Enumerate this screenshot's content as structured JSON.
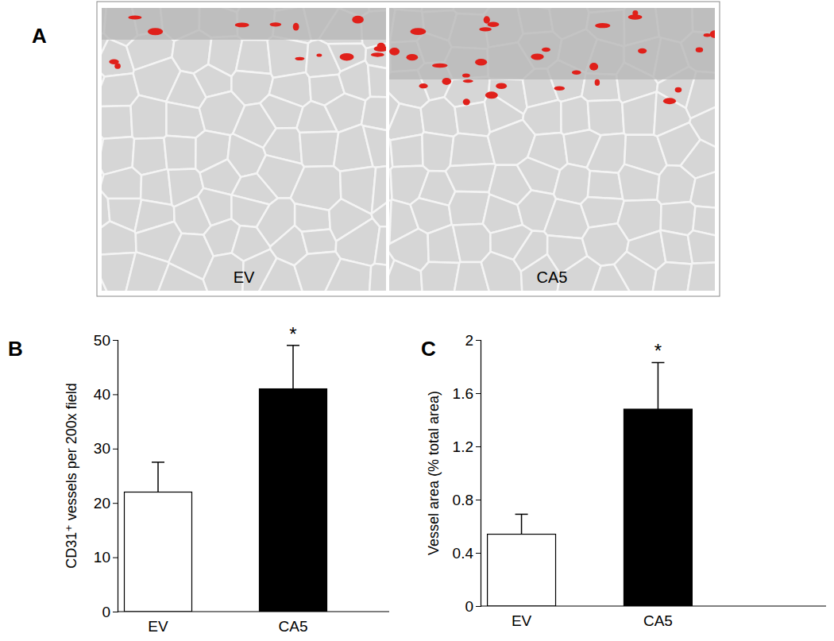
{
  "panel_a": {
    "title": "A",
    "image_labels": [
      "EV",
      "CA5"
    ]
  },
  "chart_data": [
    {
      "type": "bar",
      "title": "B",
      "y_label": "CD31⁺ vessels per 200x field",
      "categories": [
        "EV",
        "CA5"
      ],
      "values": [
        22,
        41
      ],
      "errors": [
        5.5,
        8
      ],
      "colors": [
        "#ffffff",
        "#000000"
      ],
      "ylim": [
        0,
        50
      ],
      "yticks": [
        0,
        10,
        20,
        30,
        40,
        50
      ],
      "annotations": [
        {
          "text": "*",
          "category": "CA5"
        }
      ]
    },
    {
      "type": "bar",
      "title": "C",
      "y_label": "Vessel area (% total area)",
      "categories": [
        "EV",
        "CA5"
      ],
      "values": [
        0.54,
        1.48
      ],
      "errors": [
        0.15,
        0.35
      ],
      "colors": [
        "#ffffff",
        "#000000"
      ],
      "ylim": [
        0,
        2
      ],
      "yticks": [
        0,
        0.4,
        0.8,
        1.2,
        1.6,
        2
      ],
      "annotations": [
        {
          "text": "*",
          "category": "CA5"
        }
      ]
    }
  ]
}
